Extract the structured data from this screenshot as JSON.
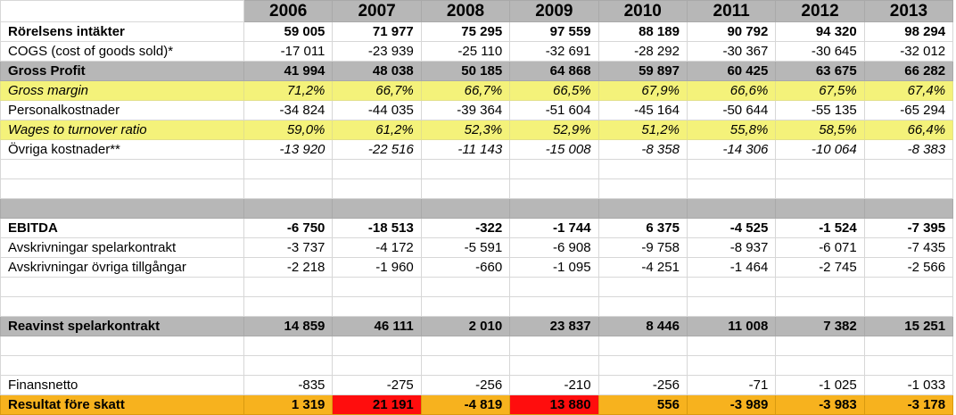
{
  "years": [
    "2006",
    "2007",
    "2008",
    "2009",
    "2010",
    "2011",
    "2012",
    "2013"
  ],
  "rows": [
    {
      "label": "Rörelsens intäkter",
      "values": [
        "59 005",
        "71 977",
        "75 295",
        "97 559",
        "88 189",
        "90 792",
        "94 320",
        "98 294"
      ]
    },
    {
      "label": "COGS (cost of goods sold)*",
      "values": [
        "-17 011",
        "-23 939",
        "-25 110",
        "-32 691",
        "-28 292",
        "-30 367",
        "-30 645",
        "-32 012"
      ]
    },
    {
      "label": "Gross Profit",
      "values": [
        "41 994",
        "48 038",
        "50 185",
        "64 868",
        "59 897",
        "60 425",
        "63 675",
        "66 282"
      ]
    },
    {
      "label": "Gross margin",
      "values": [
        "71,2%",
        "66,7%",
        "66,7%",
        "66,5%",
        "67,9%",
        "66,6%",
        "67,5%",
        "67,4%"
      ]
    },
    {
      "label": "Personalkostnader",
      "values": [
        "-34 824",
        "-44 035",
        "-39 364",
        "-51 604",
        "-45 164",
        "-50 644",
        "-55 135",
        "-65 294"
      ]
    },
    {
      "label": "Wages to turnover ratio",
      "values": [
        "59,0%",
        "61,2%",
        "52,3%",
        "52,9%",
        "51,2%",
        "55,8%",
        "58,5%",
        "66,4%"
      ]
    },
    {
      "label": "Övriga kostnader**",
      "values": [
        "-13 920",
        "-22 516",
        "-11 143",
        "-15 008",
        "-8 358",
        "-14 306",
        "-10 064",
        "-8 383"
      ]
    },
    {
      "label": "EBITDA",
      "values": [
        "-6 750",
        "-18 513",
        "-322",
        "-1 744",
        "6 375",
        "-4 525",
        "-1 524",
        "-7 395"
      ]
    },
    {
      "label": "Avskrivningar spelarkontrakt",
      "values": [
        "-3 737",
        "-4 172",
        "-5 591",
        "-6 908",
        "-9 758",
        "-8 937",
        "-6 071",
        "-7 435"
      ]
    },
    {
      "label": "Avskrivningar övriga tillgångar",
      "values": [
        "-2 218",
        "-1 960",
        "-660",
        "-1 095",
        "-4 251",
        "-1 464",
        "-2 745",
        "-2 566"
      ]
    },
    {
      "label": "Reavinst spelarkontrakt",
      "values": [
        "14 859",
        "46 111",
        "2 010",
        "23 837",
        "8 446",
        "11 008",
        "7 382",
        "15 251"
      ]
    },
    {
      "label": "Finansnetto",
      "values": [
        "-835",
        "-275",
        "-256",
        "-210",
        "-256",
        "-71",
        "-1 025",
        "-1 033"
      ]
    },
    {
      "label": "Resultat före skatt",
      "values": [
        "1 319",
        "21 191",
        "-4 819",
        "13 880",
        "556",
        "-3 989",
        "-3 983",
        "-3 178"
      ]
    }
  ],
  "colors": {
    "gray_band": "#b7b7b7",
    "yellow_band": "#f4f27a",
    "result_band": "#f7b21e",
    "highlight_red": "#ff0d0d"
  }
}
